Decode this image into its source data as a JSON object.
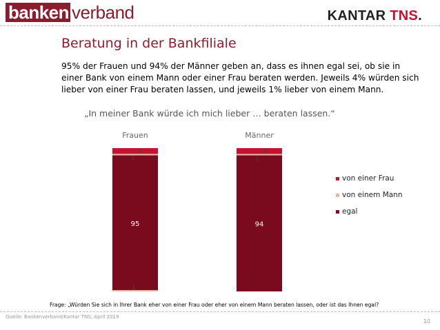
{
  "header": {
    "logo_part1": "banken",
    "logo_part2": "verband",
    "logo_right_main": "KANTAR",
    "logo_right_accent": "TNS",
    "logo_right_mark": "."
  },
  "title": "Beratung in der Bankfiliale",
  "summary": "95% der Frauen und 94% der Männer geben an, dass es ihnen egal sei, ob sie in einer Bank von einem Mann oder einer Frau beraten werden. Jeweils 4% würden sich lieber von einer Frau beraten lassen, und jeweils 1% lieber von einem Mann.",
  "quote": "„In meiner Bank würde ich mich lieber … beraten lassen.“",
  "chart_data": {
    "type": "bar",
    "stacked": true,
    "categories": [
      "Frauen",
      "Männer"
    ],
    "series": [
      {
        "name": "egal",
        "values": [
          95,
          94
        ],
        "color": "#7a0a1e"
      },
      {
        "name": "von einem Mann",
        "values": [
          1,
          1
        ],
        "color": "#e8b4a6"
      },
      {
        "name": "von einer Frau",
        "values": [
          4,
          4
        ],
        "color": "#c41230"
      }
    ],
    "extra_labels": [
      {
        "category": "Frauen",
        "label": "1"
      }
    ],
    "legend_position": "right",
    "grid": false
  },
  "footnote": "Frage: „Würden Sie sich in Ihrer Bank eher von einer Frau oder eher von einem Mann beraten lassen, oder ist das Ihnen egal?",
  "source": "Quelle: Bankenverband/Kantar TNS; April 2019",
  "page_number": "10"
}
